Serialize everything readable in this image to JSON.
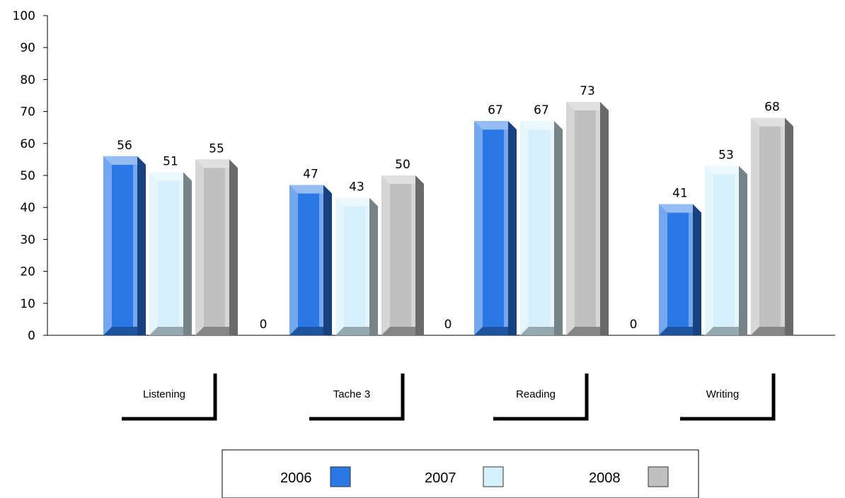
{
  "chart_data": {
    "type": "bar",
    "categories": [
      "Listening",
      "Tache 3",
      "Reading",
      "Writing"
    ],
    "series": [
      {
        "name": "2006",
        "values": [
          56,
          47,
          67,
          41
        ],
        "color": "#2a78e6"
      },
      {
        "name": "2007",
        "values": [
          51,
          43,
          67,
          53
        ],
        "color": "#d6f0fb"
      },
      {
        "name": "2008",
        "values": [
          55,
          50,
          73,
          68
        ],
        "color": "#c0c0c0"
      }
    ],
    "gap_values": [
      0,
      0,
      0
    ],
    "yticks": [
      "0",
      "10",
      "20",
      "30",
      "40",
      "50",
      "60",
      "70",
      "80",
      "90",
      "100"
    ],
    "ylim": [
      0,
      100
    ],
    "title": "",
    "xlabel": "",
    "ylabel": "",
    "grid": false,
    "legend_position": "bottom",
    "style": "3d"
  }
}
